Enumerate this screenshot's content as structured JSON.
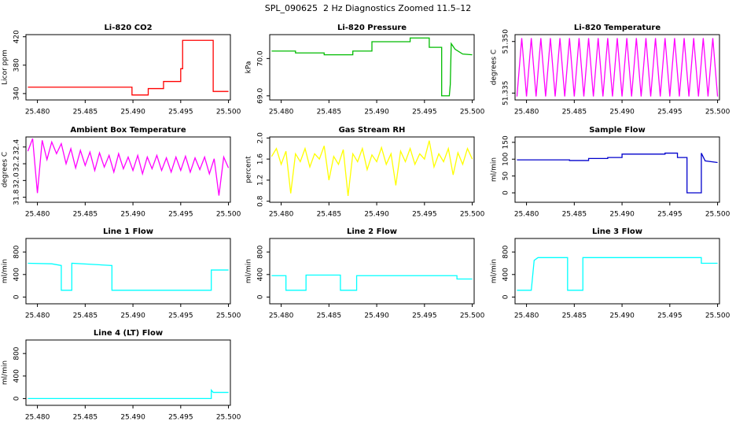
{
  "title": "SPL_090625  2 Hz Diagnostics Zoomed 11.5–12",
  "chart_data": [
    {
      "type": "line",
      "title": "Li-820 CO2",
      "ylabel": "Licor ppm",
      "color": "#ff0000",
      "xlim": [
        25.4788,
        25.5002
      ],
      "xticks": [
        {
          "value": 25.48,
          "label": "25.480"
        },
        {
          "value": 25.485,
          "label": "25.485"
        },
        {
          "value": 25.49,
          "label": "25.490"
        },
        {
          "value": 25.495,
          "label": "25.495"
        },
        {
          "value": 25.5,
          "label": "25.500"
        }
      ],
      "ylim": [
        331,
        423
      ],
      "yticks": [
        340,
        380,
        420
      ],
      "x": [
        25.479,
        25.4899,
        25.4899,
        25.4916,
        25.4916,
        25.4932,
        25.4932,
        25.495,
        25.495,
        25.4952,
        25.4952,
        25.4984,
        25.4984,
        25.5
      ],
      "values": [
        349,
        349,
        338,
        338,
        347,
        347,
        357,
        357,
        375,
        375,
        415,
        415,
        343,
        343
      ]
    },
    {
      "type": "line",
      "title": "Li-820 Pressure",
      "ylabel": "kPa",
      "color": "#00bb00",
      "xlim": [
        25.4788,
        25.5002
      ],
      "xticks": [
        {
          "value": 25.48,
          "label": "25.480"
        },
        {
          "value": 25.485,
          "label": "25.485"
        },
        {
          "value": 25.49,
          "label": "25.490"
        },
        {
          "value": 25.495,
          "label": "25.495"
        },
        {
          "value": 25.5,
          "label": "25.500"
        }
      ],
      "ylim": [
        68.89,
        70.64
      ],
      "yticks": [
        {
          "value": 69,
          "label": "69.0"
        },
        {
          "value": 70,
          "label": "70.0"
        }
      ],
      "x": [
        25.479,
        25.4815,
        25.4815,
        25.4845,
        25.4845,
        25.4875,
        25.4875,
        25.4895,
        25.4895,
        25.4935,
        25.4935,
        25.4955,
        25.4955,
        25.4968,
        25.4968,
        25.4976,
        25.4977,
        25.4978,
        25.4982,
        25.499,
        25.5
      ],
      "values": [
        70.2,
        70.2,
        70.15,
        70.15,
        70.1,
        70.1,
        70.2,
        70.2,
        70.45,
        70.45,
        70.55,
        70.55,
        70.3,
        70.3,
        69.0,
        69.0,
        69.3,
        70.4,
        70.25,
        70.12,
        70.1
      ]
    },
    {
      "type": "line",
      "title": "Li-820 Temperature",
      "ylabel": "degrees C",
      "color": "#ff00ff",
      "xlim": [
        25.4788,
        25.5002
      ],
      "xticks": [
        {
          "value": 25.48,
          "label": "25.480"
        },
        {
          "value": 25.485,
          "label": "25.485"
        },
        {
          "value": 25.49,
          "label": "25.490"
        },
        {
          "value": 25.495,
          "label": "25.495"
        },
        {
          "value": 25.5,
          "label": "25.500"
        }
      ],
      "ylim": [
        51.333,
        51.352
      ],
      "yticks": [
        51.335,
        {
          "value": 51.35,
          "label": "51.350"
        }
      ],
      "x": [
        25.479,
        25.4795,
        25.48,
        25.4805,
        25.481,
        25.4815,
        25.482,
        25.4825,
        25.483,
        25.4835,
        25.484,
        25.4845,
        25.485,
        25.4855,
        25.486,
        25.4865,
        25.487,
        25.4875,
        25.488,
        25.4885,
        25.489,
        25.4895,
        25.49,
        25.4905,
        25.491,
        25.4915,
        25.492,
        25.4925,
        25.493,
        25.4935,
        25.494,
        25.4945,
        25.495,
        25.4955,
        25.496,
        25.4965,
        25.497,
        25.4975,
        25.498,
        25.4985,
        25.499,
        25.4995,
        25.5
      ],
      "values": [
        51.334,
        51.351,
        51.334,
        51.351,
        51.334,
        51.351,
        51.334,
        51.351,
        51.334,
        51.351,
        51.334,
        51.351,
        51.334,
        51.351,
        51.334,
        51.351,
        51.334,
        51.351,
        51.334,
        51.351,
        51.334,
        51.351,
        51.334,
        51.351,
        51.334,
        51.351,
        51.334,
        51.351,
        51.334,
        51.351,
        51.334,
        51.351,
        51.334,
        51.351,
        51.334,
        51.351,
        51.334,
        51.351,
        51.334,
        51.351,
        51.334,
        51.351,
        51.334
      ]
    },
    {
      "type": "line",
      "title": "Ambient Box Temperature",
      "ylabel": "degrees C",
      "color": "#ff00ff",
      "xlim": [
        25.4788,
        25.5002
      ],
      "xticks": [
        {
          "value": 25.48,
          "label": "25.480"
        },
        {
          "value": 25.485,
          "label": "25.485"
        },
        {
          "value": 25.49,
          "label": "25.490"
        },
        {
          "value": 25.495,
          "label": "25.495"
        },
        {
          "value": 25.5,
          "label": "25.500"
        }
      ],
      "ylim": [
        31.74,
        32.52
      ],
      "yticks": [
        31.8,
        {
          "value": 32,
          "label": "32.0"
        },
        32.2,
        32.4
      ],
      "x": [
        25.479,
        25.4795,
        25.48,
        25.4805,
        25.481,
        25.4815,
        25.482,
        25.4825,
        25.483,
        25.4835,
        25.484,
        25.4845,
        25.485,
        25.4855,
        25.486,
        25.4865,
        25.487,
        25.4875,
        25.488,
        25.4885,
        25.489,
        25.4895,
        25.49,
        25.4905,
        25.491,
        25.4915,
        25.492,
        25.4925,
        25.493,
        25.4935,
        25.494,
        25.4945,
        25.495,
        25.4955,
        25.496,
        25.4965,
        25.497,
        25.4975,
        25.498,
        25.4985,
        25.499,
        25.4995,
        25.5
      ],
      "values": [
        32.35,
        32.5,
        31.85,
        32.48,
        32.25,
        32.46,
        32.32,
        32.44,
        32.2,
        32.38,
        32.15,
        32.36,
        32.18,
        32.34,
        32.12,
        32.33,
        32.16,
        32.3,
        32.1,
        32.32,
        32.14,
        32.28,
        32.12,
        32.3,
        32.08,
        32.28,
        32.14,
        32.3,
        32.12,
        32.27,
        32.1,
        32.28,
        32.12,
        32.29,
        32.1,
        32.27,
        32.13,
        32.28,
        32.08,
        32.26,
        31.82,
        32.28,
        32.15
      ]
    },
    {
      "type": "line",
      "title": "Gas Stream RH",
      "ylabel": "percent",
      "color": "#ffff00",
      "xlim": [
        25.4788,
        25.5002
      ],
      "xticks": [
        {
          "value": 25.48,
          "label": "25.480"
        },
        {
          "value": 25.485,
          "label": "25.485"
        },
        {
          "value": 25.49,
          "label": "25.490"
        },
        {
          "value": 25.495,
          "label": "25.495"
        },
        {
          "value": 25.5,
          "label": "25.500"
        }
      ],
      "ylim": [
        0.78,
        2.02
      ],
      "yticks": [
        0.8,
        1.2,
        1.6,
        {
          "value": 2,
          "label": "2.0"
        }
      ],
      "x": [
        25.479,
        25.4795,
        25.48,
        25.4805,
        25.481,
        25.4815,
        25.482,
        25.4825,
        25.483,
        25.4835,
        25.484,
        25.4845,
        25.485,
        25.4855,
        25.486,
        25.4865,
        25.487,
        25.4875,
        25.488,
        25.4885,
        25.489,
        25.4895,
        25.49,
        25.4905,
        25.491,
        25.4915,
        25.492,
        25.4925,
        25.493,
        25.4935,
        25.494,
        25.4945,
        25.495,
        25.4955,
        25.496,
        25.4965,
        25.497,
        25.4975,
        25.498,
        25.4985,
        25.499,
        25.4995,
        25.5
      ],
      "values": [
        1.65,
        1.8,
        1.5,
        1.75,
        0.95,
        1.7,
        1.55,
        1.8,
        1.45,
        1.7,
        1.6,
        1.85,
        1.2,
        1.65,
        1.5,
        1.78,
        0.9,
        1.7,
        1.55,
        1.8,
        1.4,
        1.68,
        1.55,
        1.82,
        1.5,
        1.7,
        1.1,
        1.75,
        1.55,
        1.8,
        1.5,
        1.7,
        1.6,
        1.95,
        1.45,
        1.7,
        1.55,
        1.8,
        1.3,
        1.72,
        1.5,
        1.8,
        1.6
      ]
    },
    {
      "type": "line",
      "title": "Sample Flow",
      "ylabel": "ml/min",
      "color": "#0000cc",
      "xlim": [
        25.4788,
        25.5002
      ],
      "xticks": [
        {
          "value": 25.48,
          "label": "25.480"
        },
        {
          "value": 25.485,
          "label": "25.485"
        },
        {
          "value": 25.49,
          "label": "25.490"
        },
        {
          "value": 25.495,
          "label": "25.495"
        },
        {
          "value": 25.5,
          "label": "25.500"
        }
      ],
      "ylim": [
        -28,
        166
      ],
      "yticks": [
        0,
        50,
        100,
        150
      ],
      "x": [
        25.479,
        25.4845,
        25.4845,
        25.4865,
        25.4865,
        25.4885,
        25.4885,
        25.49,
        25.49,
        25.4945,
        25.4945,
        25.4958,
        25.4958,
        25.4968,
        25.4968,
        25.4983,
        25.4983,
        25.4987,
        25.5
      ],
      "values": [
        98,
        98,
        96,
        96,
        102,
        102,
        105,
        105,
        115,
        115,
        118,
        118,
        105,
        105,
        0,
        0,
        118,
        95,
        90
      ]
    },
    {
      "type": "line",
      "title": "Line 1 Flow",
      "ylabel": "ml/min",
      "color": "#00ffff",
      "xlim": [
        25.4788,
        25.5002
      ],
      "xticks": [
        {
          "value": 25.48,
          "label": "25.480"
        },
        {
          "value": 25.485,
          "label": "25.485"
        },
        {
          "value": 25.49,
          "label": "25.490"
        },
        {
          "value": 25.495,
          "label": "25.495"
        },
        {
          "value": 25.5,
          "label": "25.500"
        }
      ],
      "ylim": [
        -120,
        1040
      ],
      "yticks": [
        0,
        400,
        800
      ],
      "x": [
        25.479,
        25.4815,
        25.4825,
        25.4825,
        25.4836,
        25.4836,
        25.4878,
        25.4878,
        25.4982,
        25.4982,
        25.5
      ],
      "values": [
        600,
        590,
        560,
        120,
        120,
        600,
        560,
        120,
        120,
        480,
        480
      ]
    },
    {
      "type": "line",
      "title": "Line 2 Flow",
      "ylabel": "ml/min",
      "color": "#00ffff",
      "xlim": [
        25.4788,
        25.5002
      ],
      "xticks": [
        {
          "value": 25.48,
          "label": "25.480"
        },
        {
          "value": 25.485,
          "label": "25.485"
        },
        {
          "value": 25.49,
          "label": "25.490"
        },
        {
          "value": 25.495,
          "label": "25.495"
        },
        {
          "value": 25.5,
          "label": "25.500"
        }
      ],
      "ylim": [
        -120,
        1040
      ],
      "yticks": [
        0,
        400,
        800
      ],
      "x": [
        25.479,
        25.4805,
        25.4805,
        25.4826,
        25.4826,
        25.4862,
        25.4862,
        25.4879,
        25.4879,
        25.4984,
        25.4984,
        25.5
      ],
      "values": [
        380,
        380,
        120,
        120,
        390,
        390,
        120,
        120,
        380,
        380,
        320,
        320
      ]
    },
    {
      "type": "line",
      "title": "Line 3 Flow",
      "ylabel": "ml/min",
      "color": "#00ffff",
      "xlim": [
        25.4788,
        25.5002
      ],
      "xticks": [
        {
          "value": 25.48,
          "label": "25.480"
        },
        {
          "value": 25.485,
          "label": "25.485"
        },
        {
          "value": 25.49,
          "label": "25.490"
        },
        {
          "value": 25.495,
          "label": "25.495"
        },
        {
          "value": 25.5,
          "label": "25.500"
        }
      ],
      "ylim": [
        -120,
        1040
      ],
      "yticks": [
        0,
        400,
        800
      ],
      "x": [
        25.479,
        25.4805,
        25.4808,
        25.4812,
        25.4843,
        25.4843,
        25.4859,
        25.4859,
        25.4983,
        25.4983,
        25.5
      ],
      "values": [
        120,
        120,
        650,
        700,
        700,
        120,
        120,
        700,
        700,
        600,
        600
      ]
    },
    {
      "type": "line",
      "title": "Line 4 (LT) Flow",
      "ylabel": "ml/min",
      "color": "#00ffff",
      "xlim": [
        25.4788,
        25.5002
      ],
      "xticks": [
        {
          "value": 25.48,
          "label": "25.480"
        },
        {
          "value": 25.485,
          "label": "25.485"
        },
        {
          "value": 25.49,
          "label": "25.490"
        },
        {
          "value": 25.495,
          "label": "25.495"
        },
        {
          "value": 25.5,
          "label": "25.500"
        }
      ],
      "ylim": [
        -120,
        1040
      ],
      "yticks": [
        0,
        400,
        800
      ],
      "x": [
        25.479,
        25.4982,
        25.4982,
        25.4984,
        25.5
      ],
      "values": [
        0,
        0,
        150,
        110,
        110
      ]
    }
  ]
}
